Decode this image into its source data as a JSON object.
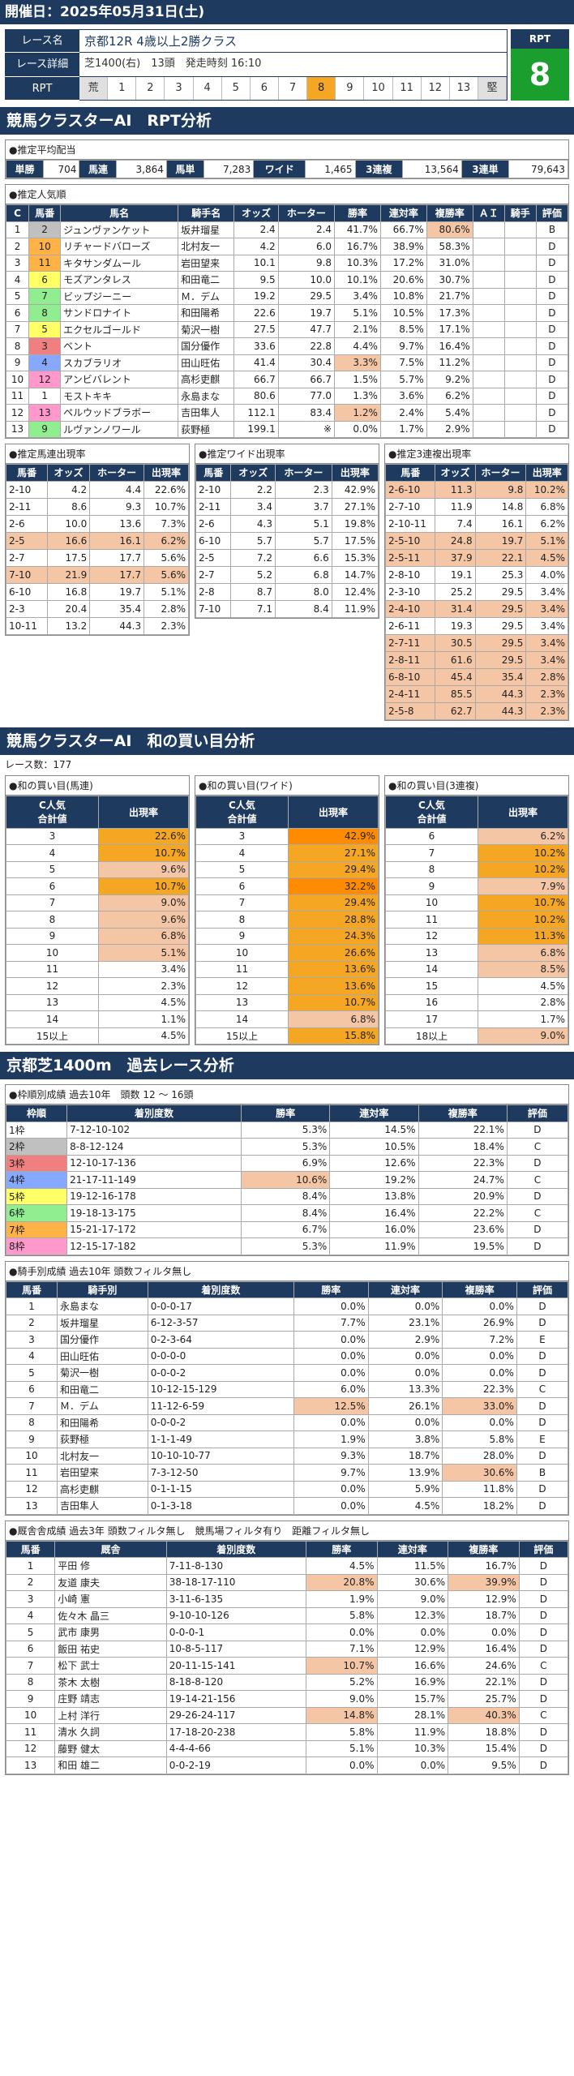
{
  "header": {
    "title": "開催日：2025年05月31日(土)"
  },
  "race": {
    "labels": [
      "レース名",
      "レース詳細",
      "RPT"
    ],
    "name": "京都12R 4歳以上2勝クラス",
    "detail": "芝1400(右)　13頭　発走時刻 16:10",
    "scale": [
      "荒",
      "1",
      "2",
      "3",
      "4",
      "5",
      "6",
      "7",
      "8",
      "9",
      "10",
      "11",
      "12",
      "13",
      "堅"
    ],
    "rpt_label": "RPT",
    "rpt_value": "8"
  },
  "section1": {
    "title": "競馬クラスターAI　RPT分析",
    "payout_caption": "●推定平均配当"
  },
  "payouts": [
    [
      "単勝",
      "704"
    ],
    [
      "馬連",
      "3,864"
    ],
    [
      "馬単",
      "7,283"
    ],
    [
      "ワイド",
      "1,465"
    ],
    [
      "3連複",
      "13,564"
    ],
    [
      "3連単",
      "79,643"
    ]
  ],
  "popularity": {
    "caption": "●推定人気順",
    "headers": [
      "C",
      "馬番",
      "馬名",
      "騎手名",
      "オッズ",
      "ホーター",
      "勝率",
      "連対率",
      "複勝率",
      "ＡＩ",
      "騎手",
      "評価"
    ],
    "rows": [
      [
        "1",
        "2",
        "ジュンヴァンケット",
        "坂井瑠星",
        "2.4",
        "2.4",
        "41.7%",
        "66.7%",
        "80.6%",
        "",
        "",
        "B"
      ],
      [
        "2",
        "10",
        "リチャードバローズ",
        "北村友一",
        "4.2",
        "6.0",
        "16.7%",
        "38.9%",
        "58.3%",
        "",
        "",
        "D"
      ],
      [
        "3",
        "11",
        "キタサンダムール",
        "岩田望来",
        "10.1",
        "9.8",
        "10.3%",
        "17.2%",
        "31.0%",
        "",
        "",
        "D"
      ],
      [
        "4",
        "6",
        "モズアンタレス",
        "和田竜二",
        "9.5",
        "10.0",
        "10.1%",
        "20.6%",
        "30.7%",
        "",
        "",
        "D"
      ],
      [
        "5",
        "7",
        "ビップジーニー",
        "Ｍ．デム",
        "19.2",
        "29.5",
        "3.4%",
        "10.8%",
        "21.7%",
        "",
        "",
        "D"
      ],
      [
        "6",
        "8",
        "サンドロナイト",
        "和田陽希",
        "22.6",
        "19.7",
        "5.1%",
        "10.5%",
        "17.3%",
        "",
        "",
        "D"
      ],
      [
        "7",
        "5",
        "エクセルゴールド",
        "菊沢一樹",
        "27.5",
        "47.7",
        "2.1%",
        "8.5%",
        "17.1%",
        "",
        "",
        "D"
      ],
      [
        "8",
        "3",
        "ベント",
        "国分優作",
        "33.6",
        "22.8",
        "4.4%",
        "9.7%",
        "16.4%",
        "",
        "",
        "D"
      ],
      [
        "9",
        "4",
        "スカブラリオ",
        "田山旺佑",
        "41.4",
        "30.4",
        "3.3%",
        "7.5%",
        "11.2%",
        "",
        "",
        "D"
      ],
      [
        "10",
        "12",
        "アンビバレント",
        "高杉吏麒",
        "66.7",
        "66.7",
        "1.5%",
        "5.7%",
        "9.2%",
        "",
        "",
        "D"
      ],
      [
        "11",
        "1",
        "モストキキ",
        "永島まな",
        "80.6",
        "77.0",
        "1.3%",
        "3.6%",
        "6.2%",
        "",
        "",
        "D"
      ],
      [
        "12",
        "13",
        "ペルウッドブラボー",
        "吉田隼人",
        "112.1",
        "83.4",
        "1.2%",
        "2.4%",
        "5.4%",
        "",
        "",
        "D"
      ],
      [
        "13",
        "9",
        "ルヴァンノワール",
        "荻野極",
        "199.1",
        "※",
        "0.0%",
        "1.7%",
        "2.9%",
        "",
        "",
        "D"
      ]
    ]
  },
  "umaren": {
    "caption": "●推定馬連出現率",
    "headers": [
      "馬番",
      "オッズ",
      "ホーター",
      "出現率"
    ],
    "rows": [
      [
        "2-10",
        "4.2",
        "4.4",
        "22.6%"
      ],
      [
        "2-11",
        "8.6",
        "9.3",
        "10.7%"
      ],
      [
        "2-6",
        "10.0",
        "13.6",
        "7.3%"
      ],
      [
        "2-5",
        "16.6",
        "16.1",
        "6.2%"
      ],
      [
        "2-7",
        "17.5",
        "17.7",
        "5.6%"
      ],
      [
        "7-10",
        "21.9",
        "17.7",
        "5.6%"
      ],
      [
        "6-10",
        "16.8",
        "19.7",
        "5.1%"
      ],
      [
        "2-3",
        "20.4",
        "35.4",
        "2.8%"
      ],
      [
        "10-11",
        "13.2",
        "44.3",
        "2.3%"
      ]
    ]
  },
  "wide": {
    "caption": "●推定ワイド出現率",
    "headers": [
      "馬番",
      "オッズ",
      "ホーター",
      "出現率"
    ],
    "rows": [
      [
        "2-10",
        "2.2",
        "2.3",
        "42.9%"
      ],
      [
        "2-11",
        "3.4",
        "3.7",
        "27.1%"
      ],
      [
        "2-6",
        "4.3",
        "5.1",
        "19.8%"
      ],
      [
        "6-10",
        "5.7",
        "5.7",
        "17.5%"
      ],
      [
        "2-5",
        "7.2",
        "6.6",
        "15.3%"
      ],
      [
        "2-7",
        "5.2",
        "6.8",
        "14.7%"
      ],
      [
        "2-8",
        "8.7",
        "8.0",
        "12.4%"
      ],
      [
        "7-10",
        "7.1",
        "8.4",
        "11.9%"
      ]
    ]
  },
  "sanrenpuku": {
    "caption": "●推定3連複出現率",
    "headers": [
      "馬番",
      "オッズ",
      "ホーター",
      "出現率"
    ],
    "rows": [
      [
        "2-6-10",
        "11.3",
        "9.8",
        "10.2%"
      ],
      [
        "2-7-10",
        "11.9",
        "14.8",
        "6.8%"
      ],
      [
        "2-10-11",
        "7.4",
        "16.1",
        "6.2%"
      ],
      [
        "2-5-10",
        "24.8",
        "19.7",
        "5.1%"
      ],
      [
        "2-5-11",
        "37.9",
        "22.1",
        "4.5%"
      ],
      [
        "2-8-10",
        "19.1",
        "25.3",
        "4.0%"
      ],
      [
        "2-3-10",
        "25.2",
        "29.5",
        "3.4%"
      ],
      [
        "2-4-10",
        "31.4",
        "29.5",
        "3.4%"
      ],
      [
        "2-6-11",
        "19.3",
        "29.5",
        "3.4%"
      ],
      [
        "2-7-11",
        "30.5",
        "29.5",
        "3.4%"
      ],
      [
        "2-8-11",
        "61.6",
        "29.5",
        "3.4%"
      ],
      [
        "6-8-10",
        "45.4",
        "35.4",
        "2.8%"
      ],
      [
        "2-4-11",
        "85.5",
        "44.3",
        "2.3%"
      ],
      [
        "2-5-8",
        "62.7",
        "44.3",
        "2.3%"
      ]
    ]
  },
  "section2": {
    "title": "競馬クラスターAI　和の買い目分析",
    "races": "レース数：177"
  },
  "wa_umaren": {
    "caption": "●和の買い目(馬連)",
    "headers": [
      "C人気\n合計値",
      "出現率"
    ],
    "rows": [
      [
        "3",
        "22.6%"
      ],
      [
        "4",
        "10.7%"
      ],
      [
        "5",
        "9.6%"
      ],
      [
        "6",
        "10.7%"
      ],
      [
        "7",
        "9.0%"
      ],
      [
        "8",
        "9.6%"
      ],
      [
        "9",
        "6.8%"
      ],
      [
        "10",
        "5.1%"
      ],
      [
        "11",
        "3.4%"
      ],
      [
        "12",
        "2.3%"
      ],
      [
        "13",
        "4.5%"
      ],
      [
        "14",
        "1.1%"
      ],
      [
        "15以上",
        "4.5%"
      ]
    ]
  },
  "wa_wide": {
    "caption": "●和の買い目(ワイド)",
    "headers": [
      "C人気\n合計値",
      "出現率"
    ],
    "rows": [
      [
        "3",
        "42.9%"
      ],
      [
        "4",
        "27.1%"
      ],
      [
        "5",
        "29.4%"
      ],
      [
        "6",
        "32.2%"
      ],
      [
        "7",
        "29.4%"
      ],
      [
        "8",
        "28.8%"
      ],
      [
        "9",
        "24.3%"
      ],
      [
        "10",
        "26.6%"
      ],
      [
        "11",
        "13.6%"
      ],
      [
        "12",
        "13.6%"
      ],
      [
        "13",
        "10.7%"
      ],
      [
        "14",
        "6.8%"
      ],
      [
        "15以上",
        "15.8%"
      ]
    ]
  },
  "wa_sanrenpuku": {
    "caption": "●和の買い目(3連複)",
    "headers": [
      "C人気\n合計値",
      "出現率"
    ],
    "rows": [
      [
        "6",
        "6.2%"
      ],
      [
        "7",
        "10.2%"
      ],
      [
        "8",
        "10.2%"
      ],
      [
        "9",
        "7.9%"
      ],
      [
        "10",
        "10.7%"
      ],
      [
        "11",
        "10.2%"
      ],
      [
        "12",
        "11.3%"
      ],
      [
        "13",
        "6.8%"
      ],
      [
        "14",
        "8.5%"
      ],
      [
        "15",
        "4.5%"
      ],
      [
        "16",
        "2.8%"
      ],
      [
        "17",
        "1.7%"
      ],
      [
        "18以上",
        "9.0%"
      ]
    ]
  },
  "section3": {
    "title": "京都芝1400m　過去レース分析"
  },
  "waku": {
    "caption": "●枠順別成績 過去10年　頭数 12 ～ 16頭",
    "headers": [
      "枠順",
      "着別度数",
      "勝率",
      "連対率",
      "複勝率",
      "評価"
    ],
    "rows": [
      [
        "1枠",
        "7-12-10-102",
        "5.3%",
        "14.5%",
        "22.1%",
        "D"
      ],
      [
        "2枠",
        "8-8-12-124",
        "5.3%",
        "10.5%",
        "18.4%",
        "C"
      ],
      [
        "3枠",
        "12-10-17-136",
        "6.9%",
        "12.6%",
        "22.3%",
        "D"
      ],
      [
        "4枠",
        "21-17-11-149",
        "10.6%",
        "19.2%",
        "24.7%",
        "C"
      ],
      [
        "5枠",
        "19-12-16-178",
        "8.4%",
        "13.8%",
        "20.9%",
        "D"
      ],
      [
        "6枠",
        "19-18-13-175",
        "8.4%",
        "16.4%",
        "22.2%",
        "C"
      ],
      [
        "7枠",
        "15-21-17-172",
        "6.7%",
        "16.0%",
        "23.6%",
        "D"
      ],
      [
        "8枠",
        "12-15-17-182",
        "5.3%",
        "11.9%",
        "19.5%",
        "D"
      ]
    ]
  },
  "jockey": {
    "caption": "●騎手別成績 過去10年 頭数フィルタ無し",
    "headers": [
      "馬番",
      "騎手別",
      "着別度数",
      "勝率",
      "連対率",
      "複勝率",
      "評価"
    ],
    "rows": [
      [
        "1",
        "永島まな",
        "0-0-0-17",
        "0.0%",
        "0.0%",
        "0.0%",
        "D"
      ],
      [
        "2",
        "坂井瑠星",
        "6-12-3-57",
        "7.7%",
        "23.1%",
        "26.9%",
        "D"
      ],
      [
        "3",
        "国分優作",
        "0-2-3-64",
        "0.0%",
        "2.9%",
        "7.2%",
        "E"
      ],
      [
        "4",
        "田山旺佑",
        "0-0-0-0",
        "0.0%",
        "0.0%",
        "0.0%",
        "D"
      ],
      [
        "5",
        "菊沢一樹",
        "0-0-0-2",
        "0.0%",
        "0.0%",
        "0.0%",
        "D"
      ],
      [
        "6",
        "和田竜二",
        "10-12-15-129",
        "6.0%",
        "13.3%",
        "22.3%",
        "C"
      ],
      [
        "7",
        "Ｍ．デム",
        "11-12-6-59",
        "12.5%",
        "26.1%",
        "33.0%",
        "D"
      ],
      [
        "8",
        "和田陽希",
        "0-0-0-2",
        "0.0%",
        "0.0%",
        "0.0%",
        "D"
      ],
      [
        "9",
        "荻野極",
        "1-1-1-49",
        "1.9%",
        "3.8%",
        "5.8%",
        "E"
      ],
      [
        "10",
        "北村友一",
        "10-10-10-77",
        "9.3%",
        "18.7%",
        "28.0%",
        "D"
      ],
      [
        "11",
        "岩田望来",
        "7-3-12-50",
        "9.7%",
        "13.9%",
        "30.6%",
        "B"
      ],
      [
        "12",
        "高杉吏麒",
        "0-1-1-15",
        "0.0%",
        "5.9%",
        "11.8%",
        "D"
      ],
      [
        "13",
        "吉田隼人",
        "0-1-3-18",
        "0.0%",
        "4.5%",
        "18.2%",
        "D"
      ]
    ]
  },
  "trainer": {
    "caption": "●厩舎舎成績 過去3年 頭数フィルタ無し　競馬場フィルタ有り　距離フィルタ無し",
    "headers": [
      "馬番",
      "厩舎",
      "着別度数",
      "勝率",
      "連対率",
      "複勝率",
      "評価"
    ],
    "rows": [
      [
        "1",
        "平田 修",
        "7-11-8-130",
        "4.5%",
        "11.5%",
        "16.7%",
        "D"
      ],
      [
        "2",
        "友道 康夫",
        "38-18-17-110",
        "20.8%",
        "30.6%",
        "39.9%",
        "D"
      ],
      [
        "3",
        "小崎 憲",
        "3-11-6-135",
        "1.9%",
        "9.0%",
        "12.9%",
        "D"
      ],
      [
        "4",
        "佐々木 晶三",
        "9-10-10-126",
        "5.8%",
        "12.3%",
        "18.7%",
        "D"
      ],
      [
        "5",
        "武市 康男",
        "0-0-0-1",
        "0.0%",
        "0.0%",
        "0.0%",
        "D"
      ],
      [
        "6",
        "飯田 祐史",
        "10-8-5-117",
        "7.1%",
        "12.9%",
        "16.4%",
        "D"
      ],
      [
        "7",
        "松下 武士",
        "20-11-15-141",
        "10.7%",
        "16.6%",
        "24.6%",
        "C"
      ],
      [
        "8",
        "茶木 太樹",
        "8-18-8-120",
        "5.2%",
        "16.9%",
        "22.1%",
        "D"
      ],
      [
        "9",
        "庄野 靖志",
        "19-14-21-156",
        "9.0%",
        "15.7%",
        "25.7%",
        "D"
      ],
      [
        "10",
        "上村 洋行",
        "29-26-24-117",
        "14.8%",
        "28.1%",
        "40.3%",
        "C"
      ],
      [
        "11",
        "清水 久詞",
        "17-18-20-238",
        "5.8%",
        "11.9%",
        "18.8%",
        "D"
      ],
      [
        "12",
        "藤野 健太",
        "4-4-4-66",
        "5.1%",
        "10.3%",
        "15.4%",
        "D"
      ],
      [
        "13",
        "和田 雄二",
        "0-0-2-19",
        "0.0%",
        "0.0%",
        "9.5%",
        "D"
      ]
    ]
  }
}
